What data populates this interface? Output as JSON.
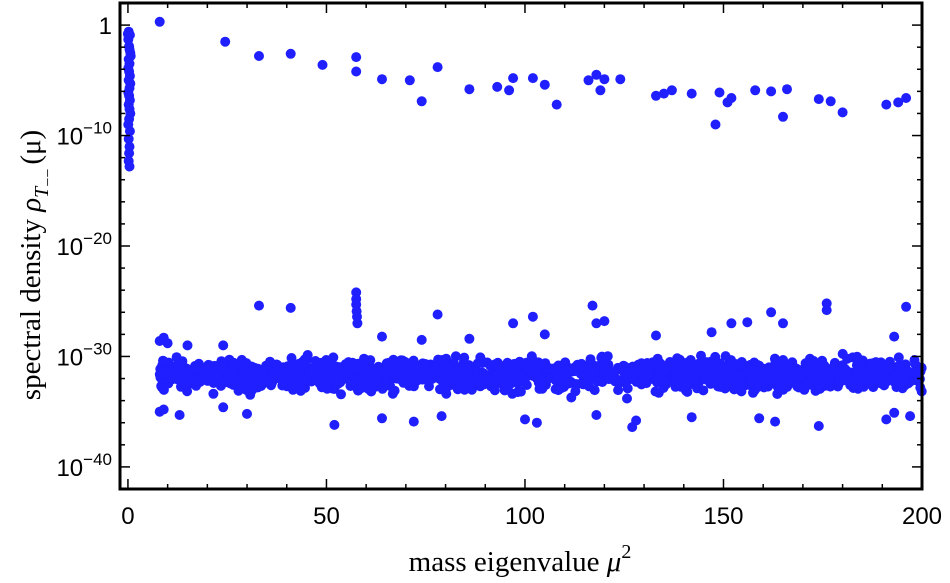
{
  "chart_data": {
    "type": "scatter",
    "x_scale": "linear",
    "y_scale": "log",
    "xlim": [
      -2,
      200
    ],
    "ylim_log10": [
      -42,
      2
    ],
    "marker_color": "#1f1fff",
    "grid": false,
    "legend": "none",
    "x_tick_labels": [
      {
        "value": 0,
        "label": "0"
      },
      {
        "value": 50,
        "label": "50"
      },
      {
        "value": 100,
        "label": "100"
      },
      {
        "value": 150,
        "label": "150"
      },
      {
        "value": 200,
        "label": "200"
      }
    ],
    "y_tick_labels": [
      {
        "log10": 0,
        "label": "1"
      },
      {
        "log10": -10,
        "label": "10",
        "exp": "−10"
      },
      {
        "log10": -20,
        "label": "10",
        "exp": "−20"
      },
      {
        "log10": -30,
        "label": "10",
        "exp": "−30"
      },
      {
        "log10": -40,
        "label": "10",
        "exp": "−40"
      }
    ],
    "xlabel": {
      "text": "mass eigenvalue ",
      "symbol": "μ",
      "sup": "2"
    },
    "ylabel": {
      "text": "spectral density ",
      "symbol": "ρ",
      "sub": "T",
      "subsub": "−−",
      "arg": "(μ)"
    },
    "upper_points": [
      [
        0.0,
        -0.8
      ],
      [
        0.1,
        -1.3
      ],
      [
        0.2,
        -0.6
      ],
      [
        0.3,
        -1.9
      ],
      [
        0.4,
        -2.2
      ],
      [
        0.5,
        -0.9
      ],
      [
        0.6,
        -2.5
      ],
      [
        0.7,
        -2.8
      ],
      [
        0.2,
        -3.1
      ],
      [
        0.4,
        -3.5
      ],
      [
        0.1,
        -3.9
      ],
      [
        0.3,
        -4.2
      ],
      [
        0.5,
        -4.6
      ],
      [
        0.2,
        -5.0
      ],
      [
        0.6,
        -5.3
      ],
      [
        0.4,
        -5.7
      ],
      [
        0.1,
        -6.1
      ],
      [
        0.3,
        -6.4
      ],
      [
        0.5,
        -6.8
      ],
      [
        0.2,
        -7.2
      ],
      [
        0.4,
        -7.6
      ],
      [
        0.6,
        -8.0
      ],
      [
        0.3,
        -8.5
      ],
      [
        0.1,
        -9.0
      ],
      [
        0.5,
        -9.6
      ],
      [
        0.2,
        -10.3
      ],
      [
        0.4,
        -11.0
      ],
      [
        0.3,
        -11.6
      ],
      [
        0.2,
        -12.3
      ],
      [
        0.4,
        -12.8
      ],
      [
        8.0,
        0.3
      ],
      [
        24.5,
        -1.5
      ],
      [
        33,
        -2.8
      ],
      [
        41,
        -2.6
      ],
      [
        49,
        -3.6
      ],
      [
        57.5,
        -2.9
      ],
      [
        57.5,
        -4.2
      ],
      [
        64,
        -4.9
      ],
      [
        71,
        -5.0
      ],
      [
        74,
        -6.9
      ],
      [
        78,
        -3.8
      ],
      [
        86,
        -5.8
      ],
      [
        93,
        -5.6
      ],
      [
        96,
        -5.9
      ],
      [
        97,
        -4.8
      ],
      [
        102,
        -4.8
      ],
      [
        105,
        -5.4
      ],
      [
        108,
        -7.2
      ],
      [
        116,
        -5.0
      ],
      [
        118,
        -4.5
      ],
      [
        119,
        -5.9
      ],
      [
        120,
        -4.9
      ],
      [
        124,
        -4.9
      ],
      [
        133,
        -6.4
      ],
      [
        135,
        -6.2
      ],
      [
        137,
        -5.9
      ],
      [
        142,
        -6.2
      ],
      [
        148,
        -9.0
      ],
      [
        149,
        -6.1
      ],
      [
        151,
        -7.0
      ],
      [
        152,
        -6.6
      ],
      [
        158,
        -5.9
      ],
      [
        162,
        -6.0
      ],
      [
        165,
        -8.3
      ],
      [
        166,
        -5.8
      ],
      [
        174,
        -6.7
      ],
      [
        177,
        -6.9
      ],
      [
        180,
        -7.9
      ],
      [
        191,
        -7.2
      ],
      [
        194,
        -7.0
      ],
      [
        196,
        -6.6
      ]
    ],
    "lower_points_summary": "about 1600 points spread over mu^2 from 8 to 200, concentrated between 1e-34 and 1e-28, with outliers reaching 1e-25 and 1e-37",
    "lower_points_band": {
      "x_range": [
        8,
        200
      ],
      "log10_center": -31.6,
      "log10_spread": 1.3,
      "count": 1600
    },
    "lower_points_outliers": [
      [
        8,
        -28.6
      ],
      [
        9,
        -28.3
      ],
      [
        10,
        -28.8
      ],
      [
        15,
        -29.0
      ],
      [
        24,
        -29.0
      ],
      [
        33,
        -25.4
      ],
      [
        41,
        -25.6
      ],
      [
        57.5,
        -24.2
      ],
      [
        57.5,
        -24.8
      ],
      [
        57.5,
        -25.3
      ],
      [
        57.6,
        -25.9
      ],
      [
        57.7,
        -26.4
      ],
      [
        57.8,
        -27.0
      ],
      [
        64,
        -28.2
      ],
      [
        74,
        -28.5
      ],
      [
        78,
        -26.2
      ],
      [
        86,
        -28.4
      ],
      [
        97,
        -27.0
      ],
      [
        102,
        -26.4
      ],
      [
        105,
        -28.0
      ],
      [
        117,
        -25.4
      ],
      [
        118,
        -27.0
      ],
      [
        120,
        -26.8
      ],
      [
        133,
        -28.1
      ],
      [
        147,
        -27.8
      ],
      [
        152,
        -27.0
      ],
      [
        156,
        -26.9
      ],
      [
        162,
        -26.0
      ],
      [
        165,
        -27.0
      ],
      [
        176,
        -25.2
      ],
      [
        176,
        -25.8
      ],
      [
        193,
        -28.2
      ],
      [
        196,
        -25.5
      ],
      [
        8,
        -35.0
      ],
      [
        9,
        -34.8
      ],
      [
        13,
        -35.3
      ],
      [
        24,
        -34.6
      ],
      [
        30,
        -35.2
      ],
      [
        52,
        -36.2
      ],
      [
        64,
        -35.6
      ],
      [
        72,
        -35.9
      ],
      [
        79,
        -35.4
      ],
      [
        100,
        -35.7
      ],
      [
        103,
        -36.0
      ],
      [
        118,
        -35.3
      ],
      [
        127,
        -36.4
      ],
      [
        128,
        -35.8
      ],
      [
        142,
        -35.5
      ],
      [
        159,
        -35.6
      ],
      [
        163,
        -35.9
      ],
      [
        174,
        -36.3
      ],
      [
        191,
        -35.7
      ],
      [
        193,
        -35.1
      ],
      [
        197,
        -35.4
      ]
    ]
  }
}
